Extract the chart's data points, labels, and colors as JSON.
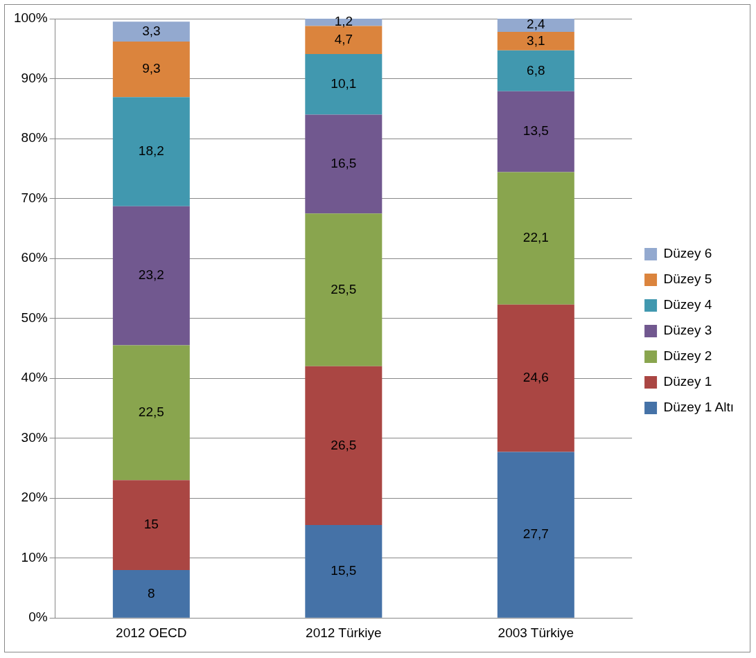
{
  "chart_data": {
    "type": "bar",
    "stacked": true,
    "categories": [
      "2012 OECD",
      "2012 Türkiye",
      "2003 Türkiye"
    ],
    "series": [
      {
        "name": "Düzey 1 Altı",
        "color": "#4572a7",
        "values": [
          8,
          15.5,
          27.7
        ],
        "value_labels": [
          "8",
          "15,5",
          "27,7"
        ]
      },
      {
        "name": "Düzey 1",
        "color": "#aa4643",
        "values": [
          15,
          26.5,
          24.6
        ],
        "value_labels": [
          "15",
          "26,5",
          "24,6"
        ]
      },
      {
        "name": "Düzey 2",
        "color": "#89a54e",
        "values": [
          22.5,
          25.5,
          22.1
        ],
        "value_labels": [
          "22,5",
          "25,5",
          "22,1"
        ]
      },
      {
        "name": "Düzey 3",
        "color": "#71588f",
        "values": [
          23.2,
          16.5,
          13.5
        ],
        "value_labels": [
          "23,2",
          "16,5",
          "13,5"
        ]
      },
      {
        "name": "Düzey 4",
        "color": "#4198af",
        "values": [
          18.2,
          10.1,
          6.8
        ],
        "value_labels": [
          "18,2",
          "10,1",
          "6,8"
        ]
      },
      {
        "name": "Düzey 5",
        "color": "#db843d",
        "values": [
          9.3,
          4.7,
          3.1
        ],
        "value_labels": [
          "9,3",
          "4,7",
          "3,1"
        ]
      },
      {
        "name": "Düzey 6",
        "color": "#93a9cf",
        "values": [
          3.3,
          1.2,
          2.4
        ],
        "value_labels": [
          "3,3",
          "1,2",
          "2,4"
        ]
      }
    ],
    "ylim": [
      0,
      100
    ],
    "yticks": [
      {
        "value": 0,
        "label": "0%"
      },
      {
        "value": 10,
        "label": "10%"
      },
      {
        "value": 20,
        "label": "20%"
      },
      {
        "value": 30,
        "label": "30%"
      },
      {
        "value": 40,
        "label": "40%"
      },
      {
        "value": 50,
        "label": "50%"
      },
      {
        "value": 60,
        "label": "60%"
      },
      {
        "value": 70,
        "label": "70%"
      },
      {
        "value": 80,
        "label": "80%"
      },
      {
        "value": 90,
        "label": "90%"
      },
      {
        "value": 100,
        "label": "100%"
      }
    ],
    "grid": "y",
    "legend": "right"
  }
}
